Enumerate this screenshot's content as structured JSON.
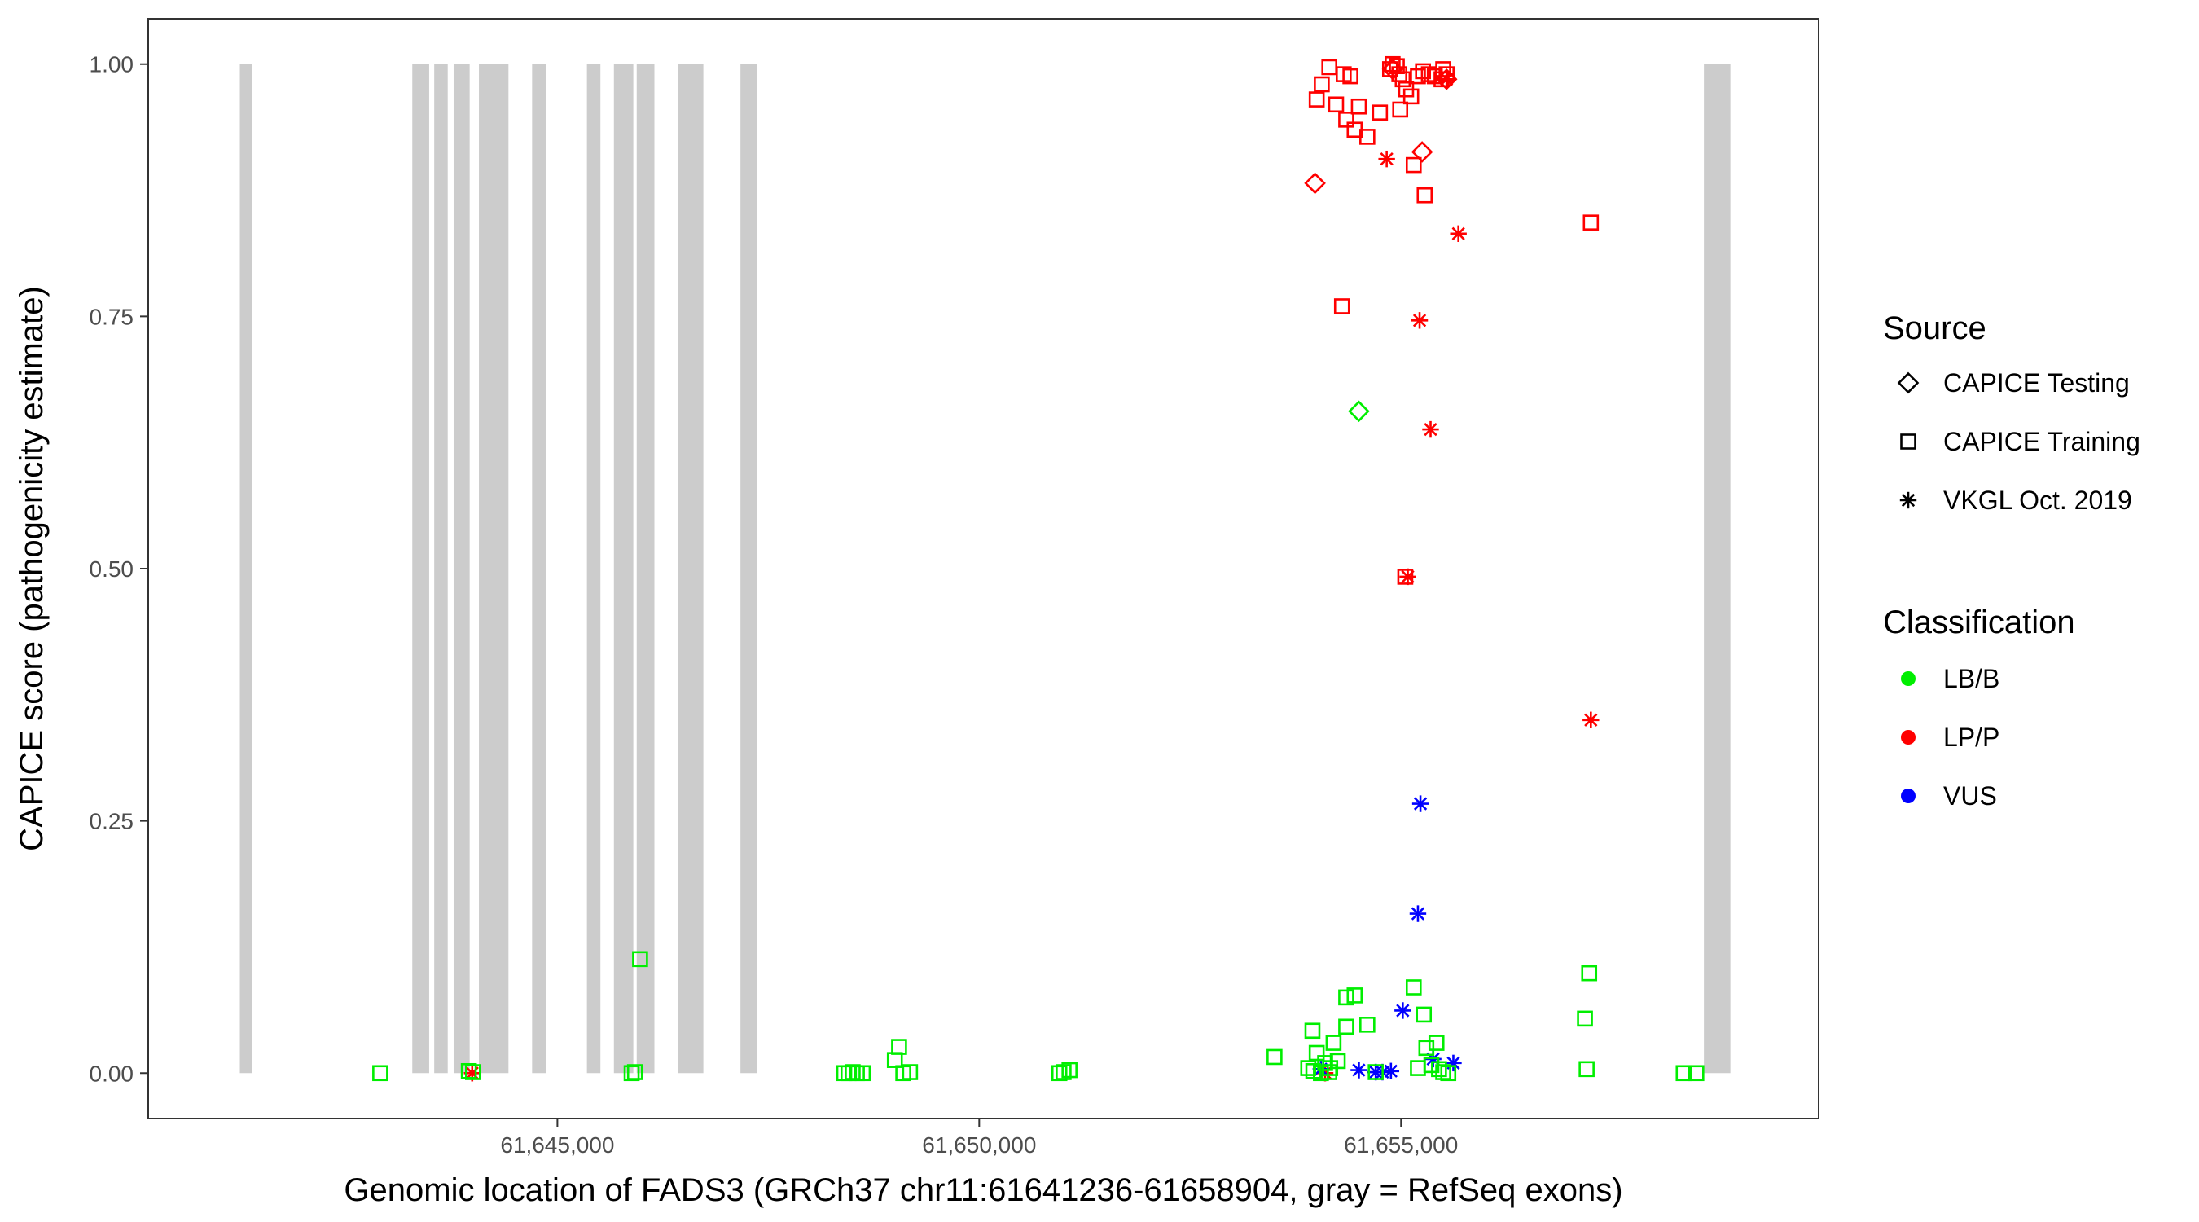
{
  "chart_data": {
    "type": "scatter",
    "title": "",
    "xlabel": "Genomic location of FADS3 (GRCh37 chr11:61641236-61658904, gray = RefSeq exons)",
    "ylabel": "CAPICE score (pathogenicity estimate)",
    "xlim": [
      61640150,
      61659950
    ],
    "ylim": [
      -0.045,
      1.045
    ],
    "x_ticks": [
      61645000,
      61650000,
      61655000
    ],
    "x_tick_labels": [
      "61,645,000",
      "61,650,000",
      "61,655,000"
    ],
    "y_ticks": [
      0,
      0.25,
      0.5,
      0.75,
      1.0
    ],
    "y_tick_labels": [
      "0.00",
      "0.25",
      "0.50",
      "0.75",
      "1.00"
    ],
    "grid": false,
    "exon_color": "#cccccc",
    "exons": [
      [
        61641236,
        61641380
      ],
      [
        61643280,
        61643480
      ],
      [
        61643540,
        61643700
      ],
      [
        61643770,
        61643960
      ],
      [
        61644070,
        61644420
      ],
      [
        61644700,
        61644870
      ],
      [
        61645350,
        61645510
      ],
      [
        61645670,
        61645900
      ],
      [
        61645940,
        61646150
      ],
      [
        61646430,
        61646730
      ],
      [
        61647170,
        61647370
      ],
      [
        61658590,
        61658904
      ]
    ],
    "legend_source": {
      "title": "Source",
      "position": "right",
      "items": [
        {
          "label": "CAPICE Testing",
          "shape": "diamond"
        },
        {
          "label": "CAPICE Training",
          "shape": "square"
        },
        {
          "label": "VKGL Oct. 2019",
          "shape": "asterisk"
        }
      ]
    },
    "legend_classification": {
      "title": "Classification",
      "position": "right",
      "items": [
        {
          "label": "LB/B",
          "color": "#00ee00"
        },
        {
          "label": "LP/P",
          "color": "#ff0000"
        },
        {
          "label": "VUS",
          "color": "#0000ff"
        }
      ]
    },
    "series": [
      {
        "source": "CAPICE Training",
        "classification": "LP/P",
        "points": [
          [
            61654150,
            0.997
          ],
          [
            61654060,
            0.98
          ],
          [
            61654000,
            0.965
          ],
          [
            61654230,
            0.96
          ],
          [
            61654320,
            0.99
          ],
          [
            61654400,
            0.988
          ],
          [
            61654350,
            0.945
          ],
          [
            61654450,
            0.935
          ],
          [
            61654500,
            0.958
          ],
          [
            61654600,
            0.928
          ],
          [
            61654750,
            0.952
          ],
          [
            61654870,
            0.995
          ],
          [
            61654900,
            1.0
          ],
          [
            61654950,
            0.998
          ],
          [
            61654980,
            0.99
          ],
          [
            61655020,
            0.985
          ],
          [
            61655060,
            0.975
          ],
          [
            61655120,
            0.968
          ],
          [
            61654990,
            0.955
          ],
          [
            61655200,
            0.988
          ],
          [
            61655260,
            0.993
          ],
          [
            61655330,
            0.99
          ],
          [
            61655400,
            0.988
          ],
          [
            61655500,
            0.995
          ],
          [
            61655540,
            0.99
          ],
          [
            61655480,
            0.985
          ],
          [
            61655150,
            0.9
          ],
          [
            61655280,
            0.87
          ],
          [
            61654300,
            0.76
          ],
          [
            61655050,
            0.492
          ],
          [
            61657250,
            0.843
          ]
        ]
      },
      {
        "source": "CAPICE Testing",
        "classification": "LP/P",
        "points": [
          [
            61653980,
            0.882
          ],
          [
            61655250,
            0.913
          ],
          [
            61654900,
            0.995
          ],
          [
            61655540,
            0.985
          ]
        ]
      },
      {
        "source": "VKGL Oct. 2019",
        "classification": "LP/P",
        "points": [
          [
            61654830,
            0.906
          ],
          [
            61655540,
            0.985
          ],
          [
            61655680,
            0.832
          ],
          [
            61655220,
            0.746
          ],
          [
            61655350,
            0.638
          ],
          [
            61655080,
            0.492
          ],
          [
            61657250,
            0.35
          ],
          [
            61643990,
            0.0
          ],
          [
            61654100,
            0.0
          ]
        ]
      },
      {
        "source": "VKGL Oct. 2019",
        "classification": "VUS",
        "points": [
          [
            61655230,
            0.267
          ],
          [
            61655200,
            0.158
          ],
          [
            61655020,
            0.062
          ],
          [
            61655380,
            0.014
          ],
          [
            61655620,
            0.01
          ],
          [
            61654050,
            0.004
          ],
          [
            61654500,
            0.003
          ],
          [
            61654880,
            0.002
          ],
          [
            61654780,
            0.001
          ],
          [
            61654700,
            0.001
          ]
        ]
      },
      {
        "source": "CAPICE Testing",
        "classification": "LB/B",
        "points": [
          [
            61654500,
            0.656
          ]
        ]
      },
      {
        "source": "CAPICE Training",
        "classification": "LB/B",
        "points": [
          [
            61642900,
            0.0
          ],
          [
            61643950,
            0.002
          ],
          [
            61644000,
            0.001
          ],
          [
            61645880,
            0.0
          ],
          [
            61645920,
            0.001
          ],
          [
            61645980,
            0.113
          ],
          [
            61648400,
            0.0
          ],
          [
            61648450,
            0.0
          ],
          [
            61648500,
            0.001
          ],
          [
            61648550,
            0.0
          ],
          [
            61648620,
            0.0
          ],
          [
            61649050,
            0.026
          ],
          [
            61649000,
            0.013
          ],
          [
            61649100,
            0.0
          ],
          [
            61649180,
            0.001
          ],
          [
            61650950,
            0.0
          ],
          [
            61651000,
            0.001
          ],
          [
            61651070,
            0.003
          ],
          [
            61653500,
            0.016
          ],
          [
            61653950,
            0.042
          ],
          [
            61654000,
            0.02
          ],
          [
            61654100,
            0.01
          ],
          [
            61654160,
            0.005
          ],
          [
            61654200,
            0.03
          ],
          [
            61654250,
            0.012
          ],
          [
            61654350,
            0.075
          ],
          [
            61654450,
            0.077
          ],
          [
            61654350,
            0.046
          ],
          [
            61654600,
            0.048
          ],
          [
            61653900,
            0.005
          ],
          [
            61653960,
            0.002
          ],
          [
            61654050,
            0.0
          ],
          [
            61654150,
            0.001
          ],
          [
            61654700,
            0.001
          ],
          [
            61655150,
            0.085
          ],
          [
            61655270,
            0.058
          ],
          [
            61655300,
            0.025
          ],
          [
            61655420,
            0.03
          ],
          [
            61655200,
            0.005
          ],
          [
            61655360,
            0.008
          ],
          [
            61655450,
            0.004
          ],
          [
            61655500,
            0.001
          ],
          [
            61655560,
            0.0
          ],
          [
            61657180,
            0.054
          ],
          [
            61657230,
            0.099
          ],
          [
            61657200,
            0.004
          ],
          [
            61658350,
            0.0
          ],
          [
            61658500,
            0.0
          ]
        ]
      }
    ]
  }
}
